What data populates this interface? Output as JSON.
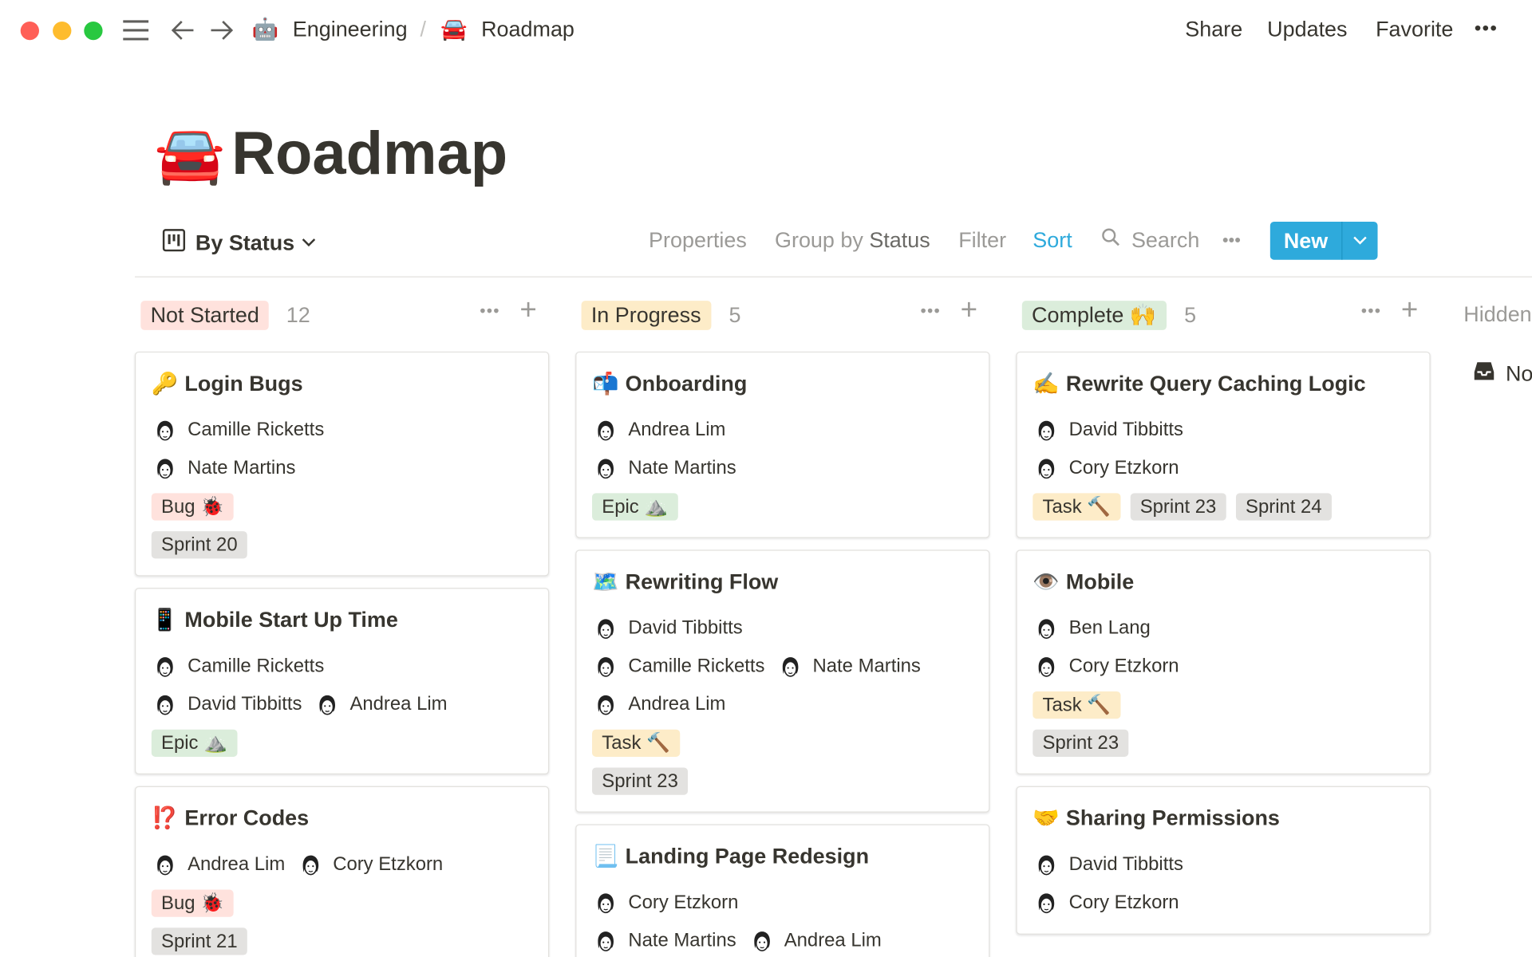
{
  "window": {
    "controls": {
      "close": "#ff5f57",
      "minimize": "#febc2e",
      "zoom": "#28c840"
    }
  },
  "topbar": {
    "menu_icon": "hamburger-icon",
    "back_icon": "arrow-left-icon",
    "forward_icon": "arrow-right-icon",
    "breadcrumb": [
      {
        "icon": "🤖",
        "label": "Engineering"
      },
      {
        "icon": "🚘",
        "label": "Roadmap"
      }
    ],
    "separator": "/",
    "actions": {
      "share": "Share",
      "updates": "Updates",
      "favorite": "Favorite",
      "more": "•••"
    }
  },
  "page": {
    "icon": "🚘",
    "title": "Roadmap"
  },
  "view": {
    "name": "By Status",
    "icon": "board-icon",
    "properties": "Properties",
    "group_by_prefix": "Group by",
    "group_by_value": "Status",
    "filter": "Filter",
    "sort": "Sort",
    "search": "Search",
    "more": "•••",
    "new": "New",
    "accent": "#2eaadc"
  },
  "columns": [
    {
      "label": "Not Started",
      "count": "12",
      "color": "#ffe2dd",
      "cards": [
        {
          "icon": "🔑",
          "title": "Login Bugs",
          "people": [
            [
              "Camille Ricketts"
            ],
            [
              "Nate Martins"
            ]
          ],
          "tags": [
            [
              {
                "label": "Bug 🐞",
                "kind": "bug"
              }
            ],
            [
              {
                "label": "Sprint 20",
                "kind": "sprint"
              }
            ]
          ]
        },
        {
          "icon": "📱",
          "title": "Mobile Start Up Time",
          "people": [
            [
              "Camille Ricketts"
            ],
            [
              "David Tibbitts",
              "Andrea Lim"
            ]
          ],
          "tags": [
            [
              {
                "label": "Epic ⛰️",
                "kind": "epic"
              }
            ]
          ]
        },
        {
          "icon": "⁉️",
          "title": "Error Codes",
          "people": [
            [
              "Andrea Lim",
              "Cory Etzkorn"
            ]
          ],
          "tags": [
            [
              {
                "label": "Bug 🐞",
                "kind": "bug"
              }
            ],
            [
              {
                "label": "Sprint 21",
                "kind": "sprint"
              }
            ]
          ]
        }
      ]
    },
    {
      "label": "In Progress",
      "count": "5",
      "color": "#fdecc8",
      "cards": [
        {
          "icon": "📬",
          "title": "Onboarding",
          "people": [
            [
              "Andrea Lim"
            ],
            [
              "Nate Martins"
            ]
          ],
          "tags": [
            [
              {
                "label": "Epic ⛰️",
                "kind": "epic"
              }
            ]
          ]
        },
        {
          "icon": "🗺️",
          "title": "Rewriting Flow",
          "people": [
            [
              "David Tibbitts"
            ],
            [
              "Camille Ricketts",
              "Nate Martins"
            ],
            [
              "Andrea Lim"
            ]
          ],
          "tags": [
            [
              {
                "label": "Task 🔨",
                "kind": "task"
              }
            ],
            [
              {
                "label": "Sprint 23",
                "kind": "sprint"
              }
            ]
          ]
        },
        {
          "icon": "📃",
          "title": "Landing Page Redesign",
          "people": [
            [
              "Cory Etzkorn"
            ],
            [
              "Nate Martins",
              "Andrea Lim"
            ]
          ],
          "tags": []
        }
      ]
    },
    {
      "label": "Complete 🙌",
      "count": "5",
      "color": "#dbeddb",
      "cards": [
        {
          "icon": "✍️",
          "title": "Rewrite Query Caching Logic",
          "people": [
            [
              "David Tibbitts"
            ],
            [
              "Cory Etzkorn"
            ]
          ],
          "tags": [
            [
              {
                "label": "Task 🔨",
                "kind": "task"
              },
              {
                "label": "Sprint 23",
                "kind": "sprint"
              },
              {
                "label": "Sprint 24",
                "kind": "sprint"
              }
            ]
          ]
        },
        {
          "icon": "👁️",
          "title": "Mobile",
          "people": [
            [
              "Ben Lang"
            ],
            [
              "Cory Etzkorn"
            ]
          ],
          "tags": [
            [
              {
                "label": "Task 🔨",
                "kind": "task"
              }
            ],
            [
              {
                "label": "Sprint 23",
                "kind": "sprint"
              }
            ]
          ]
        },
        {
          "icon": "🤝",
          "title": "Sharing Permissions",
          "people": [
            [
              "David Tibbitts"
            ],
            [
              "Cory Etzkorn"
            ]
          ],
          "tags": []
        }
      ]
    }
  ],
  "hidden": {
    "label": "Hidden",
    "item": "No"
  },
  "tag_colors": {
    "bug": "#ffe2dd",
    "epic": "#dbeddb",
    "task": "#fdecc8",
    "sprint": "#e3e2e0"
  }
}
